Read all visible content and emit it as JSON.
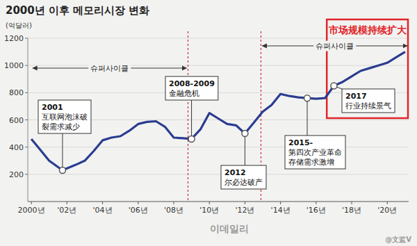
{
  "chart_data": {
    "type": "line",
    "title": "2000년 이후 메모리시장 변화",
    "y_label": "(억달러)",
    "color": "#2b3c90",
    "grid": true,
    "x": [
      2000,
      2000.5,
      2001,
      2001.75,
      2002.5,
      2003,
      2003.5,
      2004,
      2004.5,
      2005,
      2005.5,
      2006,
      2006.5,
      2007,
      2007.5,
      2008,
      2008.5,
      2009,
      2009.5,
      2010,
      2010.5,
      2011,
      2011.5,
      2012,
      2012.5,
      2013,
      2013.5,
      2014,
      2014.5,
      2015,
      2015.5,
      2016,
      2016.5,
      2017,
      2017.5,
      2018,
      2018.5,
      2019,
      2019.5,
      2020,
      2020.5,
      2021
    ],
    "values": [
      460,
      380,
      300,
      230,
      270,
      300,
      370,
      450,
      470,
      480,
      520,
      570,
      585,
      590,
      550,
      470,
      465,
      460,
      530,
      650,
      610,
      570,
      560,
      500,
      580,
      660,
      710,
      790,
      775,
      765,
      760,
      755,
      760,
      850,
      880,
      920,
      960,
      980,
      1000,
      1020,
      1060,
      1100
    ],
    "xlim": [
      1999.8,
      2021.2
    ],
    "xticks": [
      {
        "value": 2000,
        "label": "2000년"
      },
      {
        "value": 2002,
        "label": "'02년"
      },
      {
        "value": 2004,
        "label": "'04년"
      },
      {
        "value": 2006,
        "label": "'06년"
      },
      {
        "value": 2008,
        "label": "'08년"
      },
      {
        "value": 2010,
        "label": "'10년"
      },
      {
        "value": 2012,
        "label": "'12년"
      },
      {
        "value": 2014,
        "label": "'14년"
      },
      {
        "value": 2016,
        "label": "'16년"
      },
      {
        "value": 2018,
        "label": "'18년"
      },
      {
        "value": 2020,
        "label": "'20년"
      }
    ],
    "ylim": [
      0,
      1200
    ],
    "yticks": [
      200,
      400,
      600,
      800,
      1000,
      1200
    ],
    "dividers": [
      2008.8,
      2012.9
    ],
    "spans": [
      {
        "label": "슈퍼사이클",
        "from": 2000,
        "to": 2008.8
      },
      {
        "label": "슈퍼사이클",
        "from": 2012.9,
        "to": 2021.2
      }
    ],
    "highlight": {
      "label": "市场规模持续扩大",
      "from": 2016.6,
      "to": 2021.2
    },
    "annotations": [
      {
        "x": 2001.75,
        "y": 230,
        "text": [
          "2001",
          "互联网泡沫破",
          "裂需求减少"
        ]
      },
      {
        "x": 2009,
        "y": 460,
        "text": [
          "2008-2009",
          "金融危机"
        ]
      },
      {
        "x": 2012,
        "y": 500,
        "text": [
          "2012",
          "尔必达破产"
        ]
      },
      {
        "x": 2015.5,
        "y": 760,
        "text": [
          "2015-",
          "第四次产业革命",
          "存储需求激增"
        ]
      },
      {
        "x": 2017,
        "y": 850,
        "text": [
          "2017",
          "行业持续景气"
        ]
      }
    ],
    "watermarks": [
      "이데일리",
      "@文监V"
    ]
  }
}
